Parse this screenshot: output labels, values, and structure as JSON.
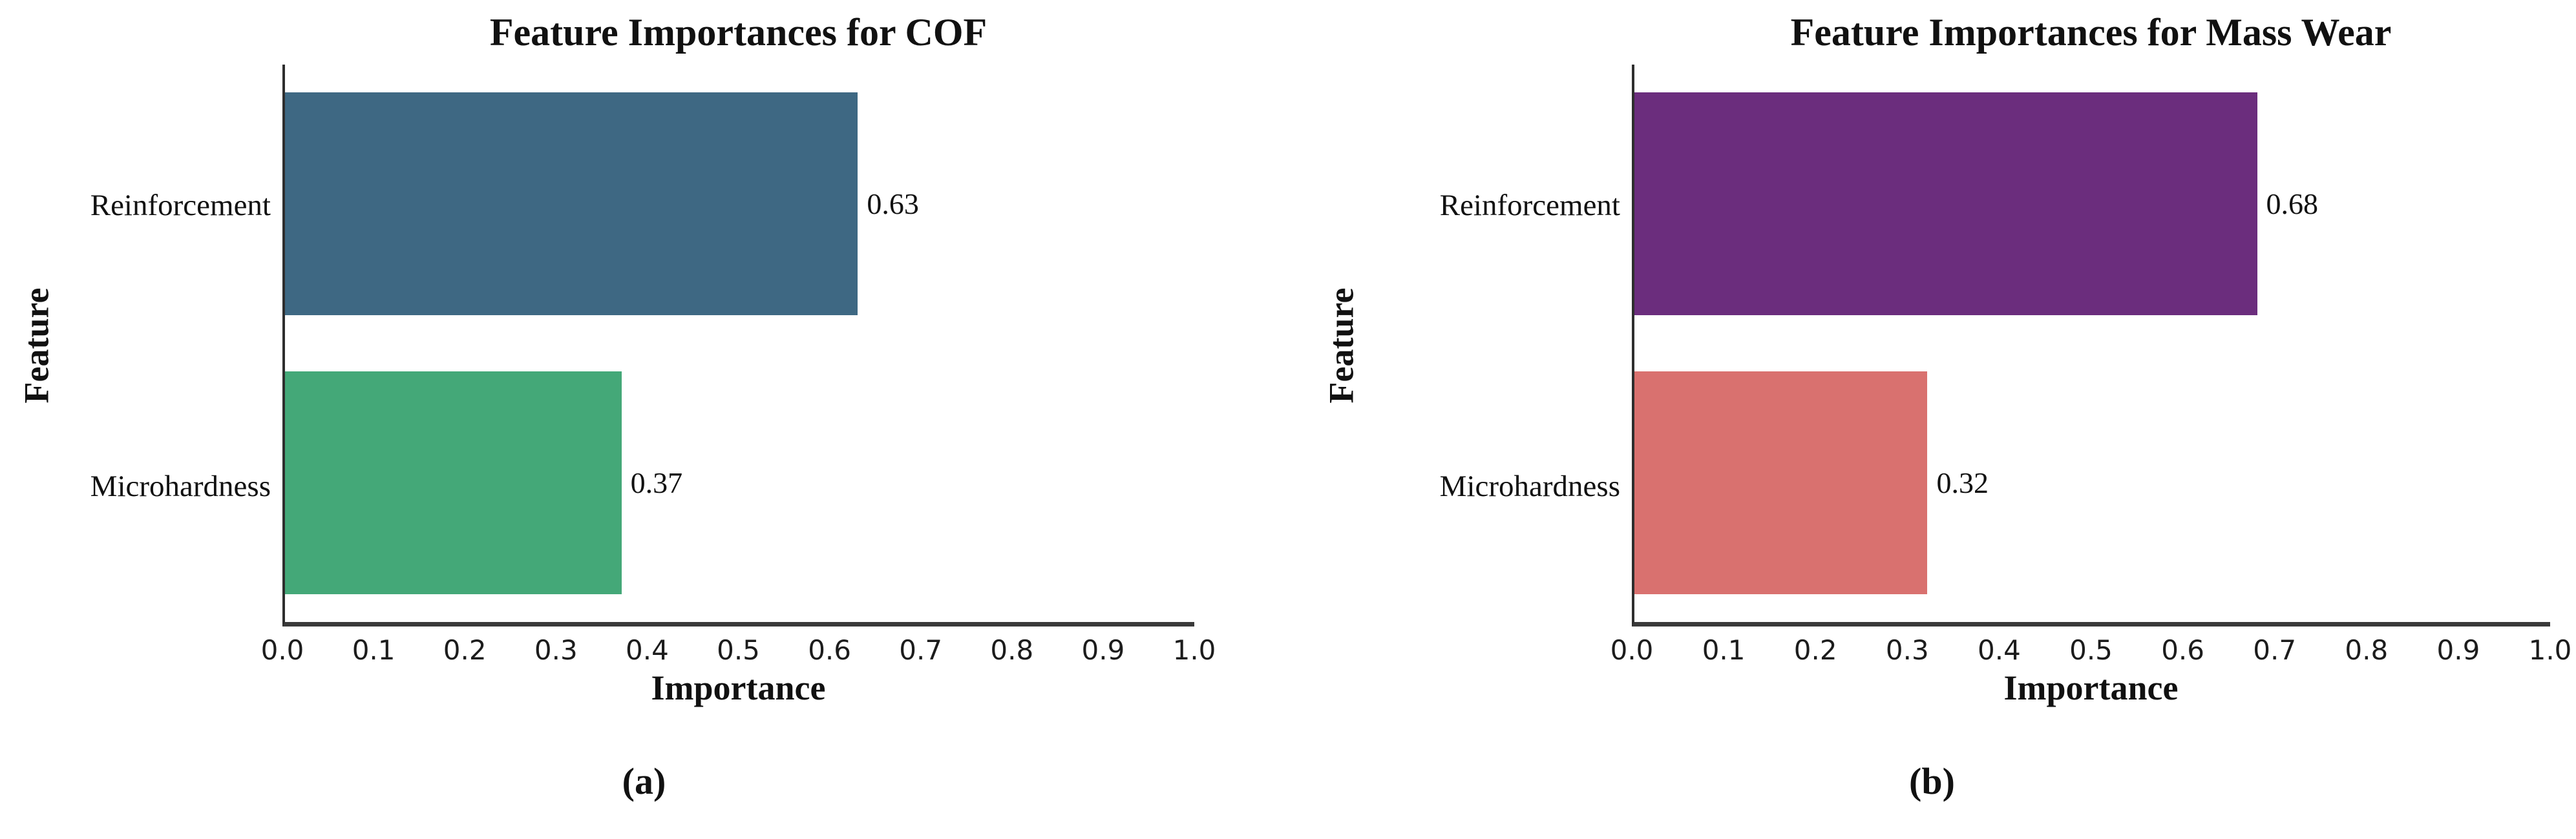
{
  "figure": {
    "background": "#ffffff",
    "text_color": "#111111",
    "spine_color": "#3a3a3a",
    "panel_labels": [
      "(a)",
      "(b)"
    ]
  },
  "chart_data": [
    {
      "type": "bar",
      "orientation": "horizontal",
      "title": "Feature Importances for COF",
      "categories": [
        "Reinforcement",
        "Microhardness"
      ],
      "values": [
        0.63,
        0.37
      ],
      "value_labels": [
        "0.63",
        "0.37"
      ],
      "bar_colors": [
        "#3E6883",
        "#44A878"
      ],
      "xlabel": "Importance",
      "ylabel": "Feature",
      "xlim": [
        0.0,
        1.0
      ],
      "xticks": [
        "0.0",
        "0.1",
        "0.2",
        "0.3",
        "0.4",
        "0.5",
        "0.6",
        "0.7",
        "0.8",
        "0.9",
        "1.0"
      ],
      "grid": false,
      "legend": "none",
      "panel_label": "(a)"
    },
    {
      "type": "bar",
      "orientation": "horizontal",
      "title": "Feature Importances for Mass Wear",
      "categories": [
        "Reinforcement",
        "Microhardness"
      ],
      "values": [
        0.68,
        0.32
      ],
      "value_labels": [
        "0.68",
        "0.32"
      ],
      "bar_colors": [
        "#6B2D7D",
        "#D9716F"
      ],
      "xlabel": "Importance",
      "ylabel": "Feature",
      "xlim": [
        0.0,
        1.0
      ],
      "xticks": [
        "0.0",
        "0.1",
        "0.2",
        "0.3",
        "0.4",
        "0.5",
        "0.6",
        "0.7",
        "0.8",
        "0.9",
        "1.0"
      ],
      "grid": false,
      "legend": "none",
      "panel_label": "(b)"
    }
  ]
}
